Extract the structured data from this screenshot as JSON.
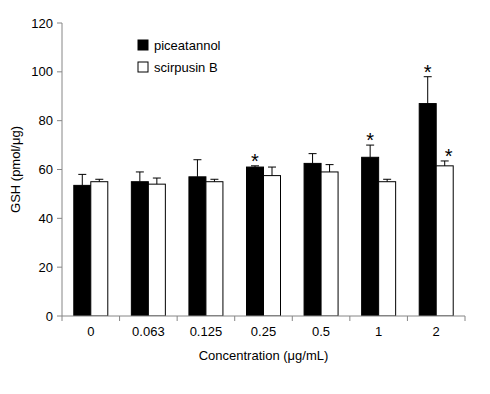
{
  "chart_data": {
    "type": "bar",
    "x_label": "Concentration (μg/mL)",
    "y_label": "GSH (pmol/μg)",
    "categories": [
      "0",
      "0.063",
      "0.125",
      "0.25",
      "0.5",
      "1",
      "2"
    ],
    "series": [
      {
        "name": "piceatannol",
        "color": "#000000",
        "values": [
          53.5,
          55,
          57,
          61,
          62.5,
          65,
          87
        ],
        "errors": [
          4.5,
          4,
          7,
          0.5,
          4,
          5,
          11
        ]
      },
      {
        "name": "scirpusin B",
        "color": "#ffffff",
        "values": [
          55,
          54,
          55,
          57.5,
          59,
          55,
          61.5
        ],
        "errors": [
          1,
          2.5,
          1,
          3.5,
          3,
          1,
          2
        ]
      }
    ],
    "annotations": [
      {
        "series": 0,
        "index": 3,
        "text": "*"
      },
      {
        "series": 0,
        "index": 5,
        "text": "*"
      },
      {
        "series": 0,
        "index": 6,
        "text": "*"
      },
      {
        "series": 1,
        "index": 6,
        "text": "*"
      }
    ],
    "ylim": [
      0,
      120
    ],
    "yticks": [
      0,
      20,
      40,
      60,
      80,
      100,
      120
    ],
    "grid": false,
    "legend": "upper left"
  }
}
